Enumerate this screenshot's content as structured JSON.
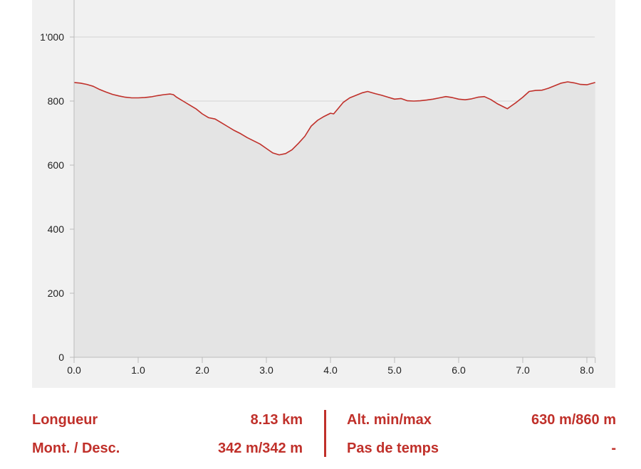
{
  "chart_data": {
    "type": "area",
    "title": "",
    "xlabel": "",
    "ylabel": "",
    "xlim": [
      0,
      8.13
    ],
    "ylim": [
      0,
      1100
    ],
    "x_ticks": [
      "0.0",
      "1.0",
      "2.0",
      "3.0",
      "4.0",
      "5.0",
      "6.0",
      "7.0",
      "8.0"
    ],
    "y_ticks": [
      "0",
      "200",
      "400",
      "600",
      "800",
      "1'000"
    ],
    "grid": true,
    "legend": "none",
    "colors": {
      "line": "#c0302a",
      "fill": "#e4e4e4",
      "panel": "#f1f1f1",
      "grid": "#d4d4d4",
      "axis": "#bbbbbb"
    },
    "series": [
      {
        "points": [
          [
            0.0,
            858
          ],
          [
            0.1,
            856
          ],
          [
            0.2,
            852
          ],
          [
            0.3,
            846
          ],
          [
            0.4,
            836
          ],
          [
            0.5,
            828
          ],
          [
            0.6,
            821
          ],
          [
            0.7,
            816
          ],
          [
            0.8,
            812
          ],
          [
            0.9,
            810
          ],
          [
            1.0,
            810
          ],
          [
            1.1,
            811
          ],
          [
            1.2,
            813
          ],
          [
            1.3,
            817
          ],
          [
            1.4,
            820
          ],
          [
            1.5,
            822
          ],
          [
            1.55,
            820
          ],
          [
            1.6,
            812
          ],
          [
            1.7,
            800
          ],
          [
            1.8,
            788
          ],
          [
            1.9,
            776
          ],
          [
            2.0,
            760
          ],
          [
            2.1,
            748
          ],
          [
            2.2,
            744
          ],
          [
            2.3,
            732
          ],
          [
            2.4,
            720
          ],
          [
            2.5,
            708
          ],
          [
            2.6,
            698
          ],
          [
            2.7,
            686
          ],
          [
            2.8,
            676
          ],
          [
            2.9,
            666
          ],
          [
            3.0,
            652
          ],
          [
            3.1,
            638
          ],
          [
            3.2,
            632
          ],
          [
            3.3,
            636
          ],
          [
            3.4,
            648
          ],
          [
            3.5,
            668
          ],
          [
            3.6,
            690
          ],
          [
            3.7,
            722
          ],
          [
            3.8,
            740
          ],
          [
            3.9,
            752
          ],
          [
            4.0,
            762
          ],
          [
            4.05,
            760
          ],
          [
            4.1,
            772
          ],
          [
            4.2,
            796
          ],
          [
            4.3,
            810
          ],
          [
            4.4,
            818
          ],
          [
            4.5,
            826
          ],
          [
            4.58,
            830
          ],
          [
            4.7,
            823
          ],
          [
            4.8,
            818
          ],
          [
            4.9,
            812
          ],
          [
            5.0,
            806
          ],
          [
            5.1,
            808
          ],
          [
            5.2,
            801
          ],
          [
            5.3,
            800
          ],
          [
            5.4,
            801
          ],
          [
            5.5,
            803
          ],
          [
            5.6,
            806
          ],
          [
            5.7,
            810
          ],
          [
            5.8,
            814
          ],
          [
            5.9,
            811
          ],
          [
            6.0,
            806
          ],
          [
            6.1,
            804
          ],
          [
            6.2,
            807
          ],
          [
            6.3,
            812
          ],
          [
            6.4,
            814
          ],
          [
            6.5,
            805
          ],
          [
            6.6,
            792
          ],
          [
            6.7,
            782
          ],
          [
            6.76,
            776
          ],
          [
            6.8,
            782
          ],
          [
            6.9,
            796
          ],
          [
            7.0,
            812
          ],
          [
            7.1,
            830
          ],
          [
            7.2,
            833
          ],
          [
            7.3,
            834
          ],
          [
            7.4,
            840
          ],
          [
            7.5,
            848
          ],
          [
            7.6,
            856
          ],
          [
            7.7,
            860
          ],
          [
            7.8,
            857
          ],
          [
            7.9,
            852
          ],
          [
            8.0,
            851
          ],
          [
            8.13,
            858
          ]
        ]
      }
    ]
  },
  "stats": {
    "length_label": "Longueur",
    "length_value": "8.13 km",
    "ascent_label": "Mont. / Desc.",
    "ascent_value": "342 m/342 m",
    "altitude_label": "Alt. min/max",
    "altitude_value": "630 m/860 m",
    "timestep_label": "Pas de temps",
    "timestep_value": "-"
  }
}
